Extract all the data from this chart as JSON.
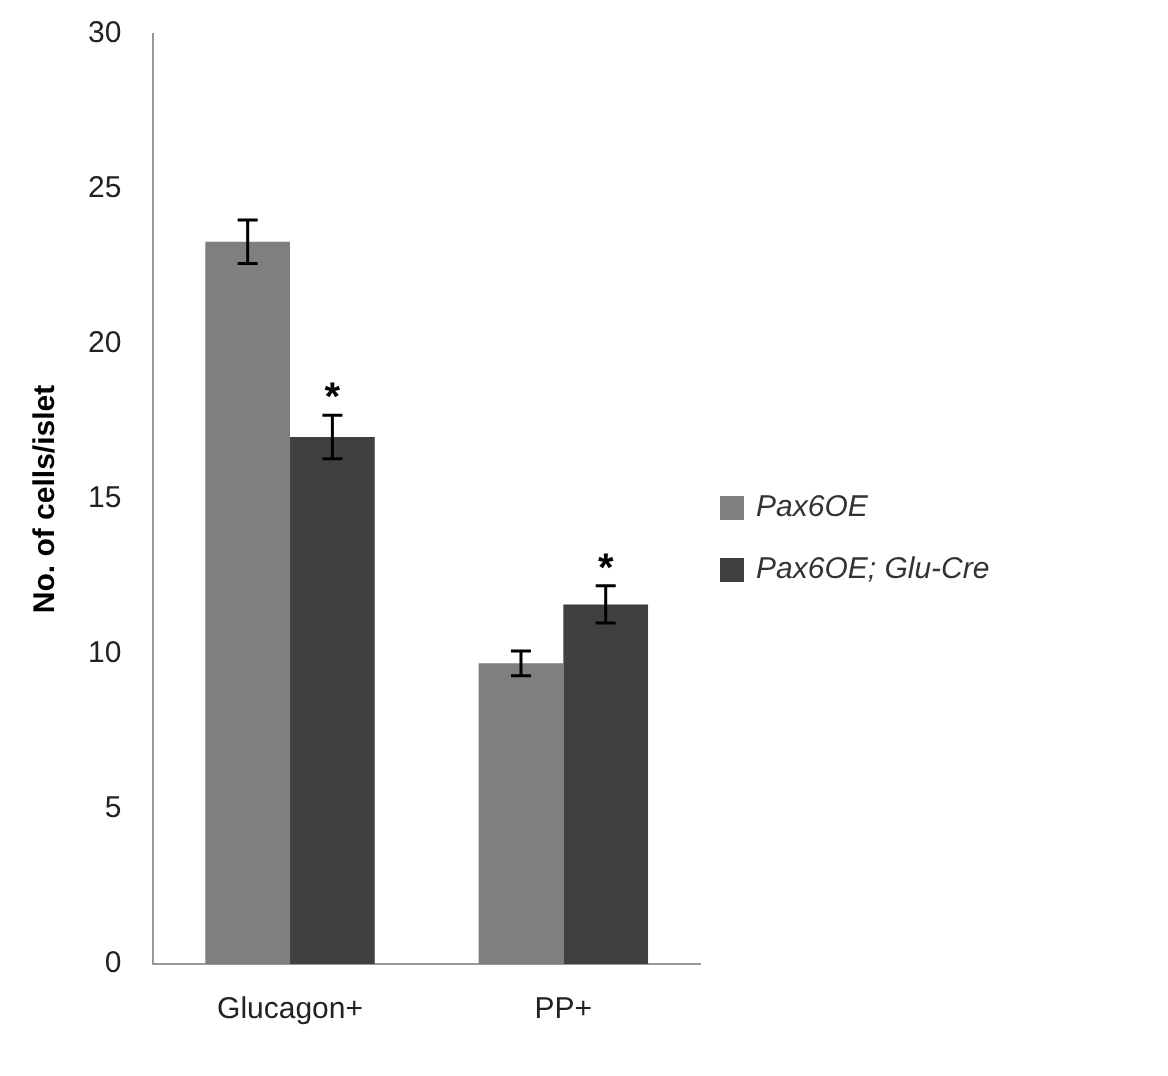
{
  "chart_data": {
    "type": "bar",
    "ylabel": "No. of cells/islet",
    "categories": [
      "Glucagon+",
      "PP+"
    ],
    "series": [
      {
        "name": "Pax6OE",
        "color": "#7f7f7f",
        "values": [
          23.3,
          9.7
        ],
        "errors": [
          0.7,
          0.4
        ]
      },
      {
        "name": "Pax6OE; Glu-Cre",
        "color": "#404040",
        "values": [
          17.0,
          11.6
        ],
        "errors": [
          0.7,
          0.6
        ]
      }
    ],
    "ylim": [
      0,
      30
    ],
    "yticks": [
      0,
      5,
      10,
      15,
      20,
      25,
      30
    ],
    "grid": false,
    "legend": "right",
    "annotations": [
      "*",
      "*"
    ]
  }
}
